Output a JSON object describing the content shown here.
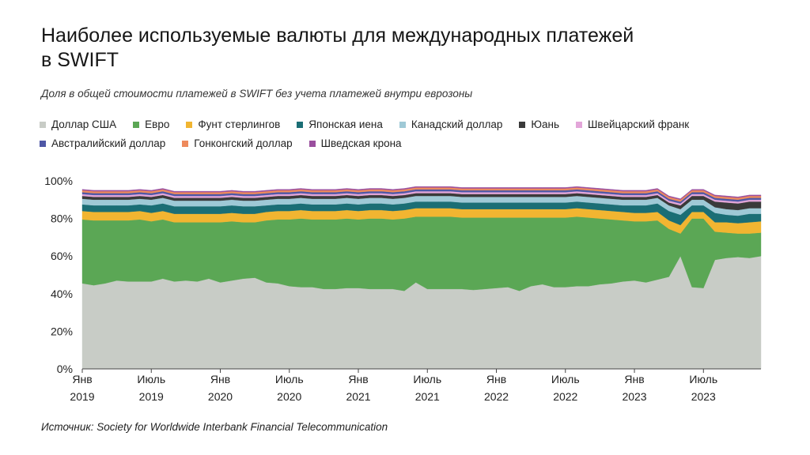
{
  "title": "Наиболее используемые валюты для международных платежей в SWIFT",
  "subtitle": "Доля в общей стоимости платежей в SWIFT без учета платежей внутри еврозоны",
  "source": "Источник: Society for Worldwide Interbank Financial Telecommunication",
  "chart_data": {
    "type": "area",
    "stacked": true,
    "title": "Наиболее используемые валюты для международных платежей в SWIFT",
    "subtitle": "Доля в общей стоимости платежей в SWIFT без учета платежей внутри еврозоны",
    "xlabel": "",
    "ylabel": "",
    "ylim": [
      0,
      100
    ],
    "grid": false,
    "legend_position": "top",
    "y_ticks": [
      "0%",
      "20%",
      "40%",
      "60%",
      "80%",
      "100%"
    ],
    "y_tick_values": [
      0,
      20,
      40,
      60,
      80,
      100
    ],
    "x_ticks": [
      {
        "index": 0,
        "line1": "Янв",
        "line2": "2019"
      },
      {
        "index": 6,
        "line1": "Июль",
        "line2": "2019"
      },
      {
        "index": 12,
        "line1": "Янв",
        "line2": "2020"
      },
      {
        "index": 18,
        "line1": "Июль",
        "line2": "2020"
      },
      {
        "index": 24,
        "line1": "Янв",
        "line2": "2021"
      },
      {
        "index": 30,
        "line1": "Июль",
        "line2": "2021"
      },
      {
        "index": 36,
        "line1": "Янв",
        "line2": "2022"
      },
      {
        "index": 42,
        "line1": "Июль",
        "line2": "2022"
      },
      {
        "index": 48,
        "line1": "Янв",
        "line2": "2023"
      },
      {
        "index": 54,
        "line1": "Июль",
        "line2": "2023"
      }
    ],
    "x": [
      "2019-01",
      "2019-02",
      "2019-03",
      "2019-04",
      "2019-05",
      "2019-06",
      "2019-07",
      "2019-08",
      "2019-09",
      "2019-10",
      "2019-11",
      "2019-12",
      "2020-01",
      "2020-02",
      "2020-03",
      "2020-04",
      "2020-05",
      "2020-06",
      "2020-07",
      "2020-08",
      "2020-09",
      "2020-10",
      "2020-11",
      "2020-12",
      "2021-01",
      "2021-02",
      "2021-03",
      "2021-04",
      "2021-05",
      "2021-06",
      "2021-07",
      "2021-08",
      "2021-09",
      "2021-10",
      "2021-11",
      "2021-12",
      "2022-01",
      "2022-02",
      "2022-03",
      "2022-04",
      "2022-05",
      "2022-06",
      "2022-07",
      "2022-08",
      "2022-09",
      "2022-10",
      "2022-11",
      "2022-12",
      "2023-01",
      "2023-02",
      "2023-03",
      "2023-04",
      "2023-05",
      "2023-06",
      "2023-07",
      "2023-08",
      "2023-09",
      "2023-10",
      "2023-11",
      "2023-12"
    ],
    "series": [
      {
        "name": "Доллар США",
        "color": "#c8ccc6",
        "values": [
          45.5,
          44.5,
          45.5,
          47,
          46.5,
          46.5,
          46.5,
          48,
          46.5,
          47,
          46.5,
          48,
          46,
          47,
          48,
          48.5,
          46,
          45.5,
          44,
          43.5,
          43.5,
          42.5,
          42.5,
          43,
          43,
          42.5,
          42.5,
          42.5,
          41.5,
          46,
          42.5,
          42.5,
          42.5,
          42.5,
          42,
          42.5,
          43,
          43.5,
          41.5,
          44,
          45,
          43.5,
          43.5,
          44,
          44,
          45,
          45.5,
          46.5,
          47,
          46,
          47.5,
          49,
          60,
          43.5,
          43,
          58,
          59,
          59.5,
          59,
          60
        ]
      },
      {
        "name": "Евро",
        "color": "#5ba755",
        "values": [
          34,
          34.5,
          33.5,
          32,
          32.5,
          33,
          32,
          31.5,
          31.5,
          31,
          31.5,
          30,
          32,
          31.5,
          30,
          29.5,
          33,
          34,
          35.5,
          36.5,
          36,
          37,
          37,
          37,
          36.5,
          37.5,
          37.5,
          37,
          38.5,
          35,
          38.5,
          38.5,
          38.5,
          38,
          38.5,
          38,
          37.5,
          37,
          39,
          36.5,
          35.5,
          37,
          37,
          37,
          36.5,
          35,
          34,
          32.5,
          31.5,
          32.5,
          31.5,
          25.5,
          12,
          36.5,
          37,
          15,
          13.5,
          12.5,
          13,
          12.5
        ]
      },
      {
        "name": "Фунт стерлингов",
        "color": "#f1b531",
        "values": [
          4.5,
          4.5,
          4.5,
          4.5,
          4.5,
          4.5,
          4.5,
          4.5,
          4.5,
          4.5,
          4.5,
          4.5,
          4.5,
          4.5,
          4.5,
          4.5,
          4.5,
          4.5,
          4.5,
          4.5,
          4.5,
          4.5,
          4.5,
          4.5,
          4.5,
          4.5,
          4.5,
          4.5,
          4.5,
          4.5,
          4.5,
          4.5,
          4.5,
          4.5,
          4.5,
          4.5,
          4.5,
          4.5,
          4.5,
          4.5,
          4.5,
          4.5,
          4.5,
          4.5,
          4.5,
          4.5,
          4.5,
          4.5,
          4.5,
          4.5,
          4.5,
          4.5,
          4.5,
          3.5,
          3.5,
          5,
          5.5,
          5.5,
          6,
          6
        ]
      },
      {
        "name": "Японская иена",
        "color": "#1b6e75",
        "values": [
          3.5,
          3.5,
          3.5,
          3.5,
          3.5,
          3.5,
          4,
          4,
          4,
          4,
          4,
          4,
          4,
          4,
          4,
          4,
          3.5,
          3.5,
          3.5,
          3.5,
          3.5,
          3.5,
          3.5,
          3.5,
          3.5,
          3.5,
          3.5,
          3.5,
          3.5,
          3.5,
          3.5,
          3.5,
          3.5,
          3.5,
          3.5,
          3.5,
          3.5,
          3.5,
          3.5,
          3.5,
          3.5,
          3.5,
          3.5,
          3.5,
          3.5,
          3.5,
          3.5,
          3.5,
          4,
          4,
          4.5,
          5,
          5.5,
          3.5,
          3.5,
          5,
          4,
          4,
          4.5,
          4
        ]
      },
      {
        "name": "Канадский доллар",
        "color": "#9fc9d6",
        "values": [
          3,
          3,
          3,
          3,
          3,
          3,
          3,
          3,
          3,
          3,
          3,
          3,
          3,
          3,
          3,
          3,
          3,
          3,
          3,
          3,
          3,
          3,
          3,
          3,
          3,
          3,
          3,
          3,
          3,
          3,
          3,
          3,
          3,
          3,
          3,
          3,
          3,
          3,
          3,
          3,
          3,
          3,
          3,
          3,
          3,
          3,
          3,
          3,
          3,
          3,
          3,
          3,
          3,
          3,
          3,
          3,
          3,
          3,
          3,
          3
        ]
      },
      {
        "name": "Юань",
        "color": "#3a3a3a",
        "values": [
          1.5,
          1.5,
          1.5,
          1.5,
          1.5,
          1.5,
          1.5,
          1.5,
          1.5,
          1.5,
          1.5,
          1.5,
          1.5,
          1.5,
          1.5,
          1.5,
          1.5,
          1.5,
          1.5,
          1.5,
          1.5,
          1.5,
          1.5,
          1.5,
          1.5,
          1.5,
          1.5,
          1.5,
          1.5,
          1.5,
          1.5,
          1.5,
          1.5,
          1.5,
          1.5,
          1.5,
          1.5,
          1.5,
          1.5,
          1.5,
          1.5,
          1.5,
          1.5,
          1.5,
          1.5,
          1.5,
          1.5,
          1.5,
          1.5,
          1.5,
          1.5,
          1.5,
          2,
          2,
          2,
          3,
          3.5,
          3.5,
          3.5,
          3.5
        ]
      },
      {
        "name": "Швейцарский франк",
        "color": "#e3a6d9",
        "values": [
          1,
          1,
          1,
          1,
          1,
          1,
          1,
          1,
          1,
          1,
          1,
          1,
          1,
          1,
          1,
          1,
          1,
          1,
          1,
          1,
          1,
          1,
          1,
          1,
          1,
          1,
          1,
          1,
          1,
          1,
          1,
          1,
          1,
          1,
          1,
          1,
          1,
          1,
          1,
          1,
          1,
          1,
          1,
          1,
          1,
          1,
          1,
          1,
          1,
          1,
          1,
          1,
          1,
          1,
          1,
          1,
          1,
          1,
          1,
          1
        ]
      },
      {
        "name": "Австралийский доллар",
        "color": "#4f58a6",
        "values": [
          1,
          1,
          1,
          1,
          1,
          1,
          1,
          1,
          1,
          1,
          1,
          1,
          1,
          1,
          1,
          1,
          1,
          1,
          1,
          1,
          1,
          1,
          1,
          1,
          1,
          1,
          1,
          1,
          1,
          1,
          1,
          1,
          1,
          1,
          1,
          1,
          1,
          1,
          1,
          1,
          1,
          1,
          1,
          1,
          1,
          1,
          1,
          1,
          1,
          1,
          1,
          1,
          1,
          1,
          1,
          1,
          1,
          1,
          1,
          1
        ]
      },
      {
        "name": "Гонконгский доллар",
        "color": "#ee8a5c",
        "values": [
          1,
          1,
          1,
          1,
          1,
          1,
          1,
          1,
          1,
          1,
          1,
          1,
          1,
          1,
          1,
          1,
          1,
          1,
          1,
          1,
          1,
          1,
          1,
          1,
          1,
          1,
          1,
          1,
          1,
          1,
          1,
          1,
          1,
          1,
          1,
          1,
          1,
          1,
          1,
          1,
          1,
          1,
          1,
          1,
          1,
          1,
          1,
          1,
          1,
          1,
          1,
          1,
          1,
          1,
          1,
          1,
          1,
          1,
          1,
          1
        ]
      },
      {
        "name": "Шведская крона",
        "color": "#9a4f9e",
        "values": [
          0.5,
          0.5,
          0.5,
          0.5,
          0.5,
          0.5,
          0.5,
          0.5,
          0.5,
          0.5,
          0.5,
          0.5,
          0.5,
          0.5,
          0.5,
          0.5,
          0.5,
          0.5,
          0.5,
          0.5,
          0.5,
          0.5,
          0.5,
          0.5,
          0.5,
          0.5,
          0.5,
          0.5,
          0.5,
          0.5,
          0.5,
          0.5,
          0.5,
          0.5,
          0.5,
          0.5,
          0.5,
          0.5,
          0.5,
          0.5,
          0.5,
          0.5,
          0.5,
          0.5,
          0.5,
          0.5,
          0.5,
          0.5,
          0.5,
          0.5,
          0.5,
          0.5,
          0.5,
          0.5,
          0.5,
          0.5,
          0.5,
          0.5,
          0.5,
          0.5
        ]
      }
    ]
  }
}
